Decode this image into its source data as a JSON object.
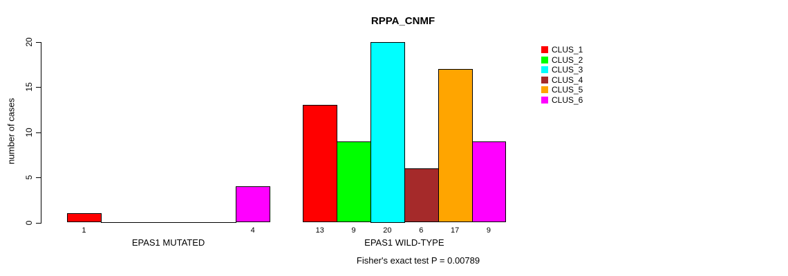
{
  "chart_data": {
    "type": "bar",
    "title": "RPPA_CNMF",
    "subtitle": "Fisher's exact test P = 0.00789",
    "ylabel": "number of cases",
    "ylim": [
      0,
      20
    ],
    "yticks": [
      0,
      5,
      10,
      15,
      20
    ],
    "groups": [
      {
        "label": "EPAS1 MUTATED",
        "values": [
          1,
          0,
          0,
          0,
          0,
          4
        ]
      },
      {
        "label": "EPAS1 WILD-TYPE",
        "values": [
          13,
          9,
          20,
          6,
          17,
          9
        ]
      }
    ],
    "series": [
      "CLUS_1",
      "CLUS_2",
      "CLUS_3",
      "CLUS_4",
      "CLUS_5",
      "CLUS_6"
    ],
    "colors": [
      "#ff0000",
      "#00ff00",
      "#00ffff",
      "#a52a2a",
      "#ffa500",
      "#ff00ff"
    ],
    "legend_position": "top-right",
    "grid": false,
    "notes": "bar value labels shown beneath non-zero bars only"
  },
  "legend": {
    "items": [
      {
        "label": "CLUS_1",
        "color": "#ff0000"
      },
      {
        "label": "CLUS_2",
        "color": "#00ff00"
      },
      {
        "label": "CLUS_3",
        "color": "#00ffff"
      },
      {
        "label": "CLUS_4",
        "color": "#a52a2a"
      },
      {
        "label": "CLUS_5",
        "color": "#ffa500"
      },
      {
        "label": "CLUS_6",
        "color": "#ff00ff"
      }
    ]
  }
}
